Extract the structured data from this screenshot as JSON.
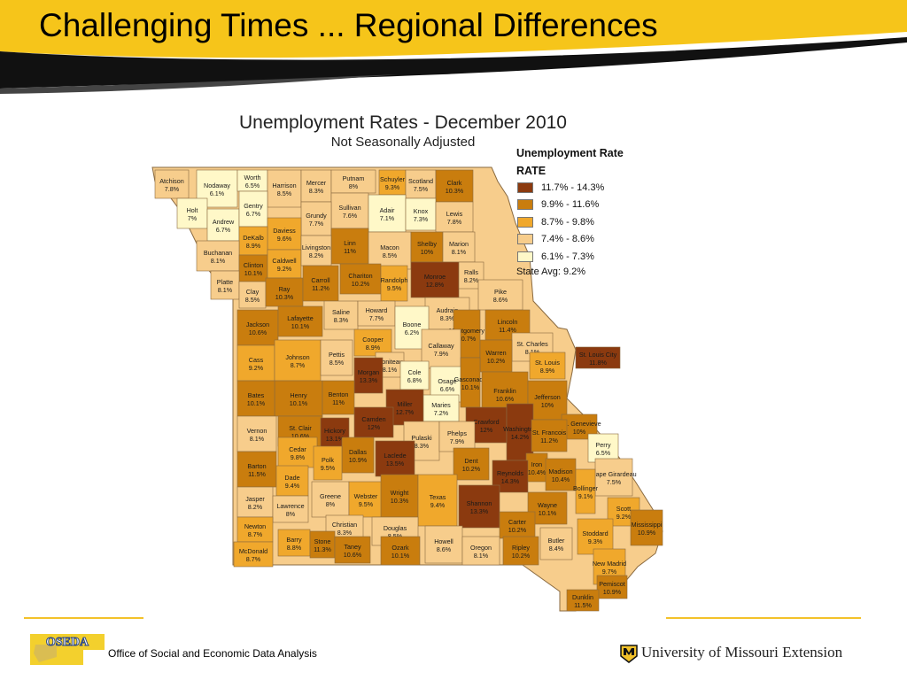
{
  "slide": {
    "title": "Challenging Times ... Regional Differences"
  },
  "map": {
    "title": "Unemployment Rates - December 2010",
    "subtitle": "Not Seasonally Adjusted"
  },
  "legend": {
    "title": "Unemployment Rate",
    "subtitle": "RATE",
    "classes": [
      {
        "label": "11.7% - 14.3%",
        "color": "#8b3a0f"
      },
      {
        "label": "9.9% - 11.6%",
        "color": "#c97d0e"
      },
      {
        "label": "8.7% - 9.8%",
        "color": "#f0a82c"
      },
      {
        "label": "7.4% - 8.6%",
        "color": "#f7cd8c"
      },
      {
        "label": "6.1% - 7.3%",
        "color": "#fff8c8"
      }
    ],
    "state_avg": "State Avg: 9.2%"
  },
  "counties": [
    {
      "name": "Atchison",
      "rate": "7.8%"
    },
    {
      "name": "Nodaway",
      "rate": "6.1%"
    },
    {
      "name": "Worth",
      "rate": "6.5%"
    },
    {
      "name": "Harrison",
      "rate": "8.5%"
    },
    {
      "name": "Mercer",
      "rate": "8.3%"
    },
    {
      "name": "Putnam",
      "rate": "8%"
    },
    {
      "name": "Schuyler",
      "rate": "9.3%"
    },
    {
      "name": "Scotland",
      "rate": "7.5%"
    },
    {
      "name": "Clark",
      "rate": "10.3%"
    },
    {
      "name": "Holt",
      "rate": "7%"
    },
    {
      "name": "Andrew",
      "rate": "6.7%"
    },
    {
      "name": "Gentry",
      "rate": "6.7%"
    },
    {
      "name": "Sullivan",
      "rate": "7.6%"
    },
    {
      "name": "Adair",
      "rate": "7.1%"
    },
    {
      "name": "Knox",
      "rate": "7.3%"
    },
    {
      "name": "Lewis",
      "rate": "7.8%"
    },
    {
      "name": "Grundy",
      "rate": "7.7%"
    },
    {
      "name": "Daviess",
      "rate": "9.6%"
    },
    {
      "name": "DeKalb",
      "rate": "8.9%"
    },
    {
      "name": "Linn",
      "rate": "11%"
    },
    {
      "name": "Macon",
      "rate": "8.5%"
    },
    {
      "name": "Shelby",
      "rate": "10%"
    },
    {
      "name": "Marion",
      "rate": "8.1%"
    },
    {
      "name": "Buchanan",
      "rate": "8.1%"
    },
    {
      "name": "Clinton",
      "rate": "10.1%"
    },
    {
      "name": "Caldwell",
      "rate": "9.2%"
    },
    {
      "name": "Livingston",
      "rate": "8.2%"
    },
    {
      "name": "Chariton",
      "rate": "10.2%"
    },
    {
      "name": "Randolph",
      "rate": "9.5%"
    },
    {
      "name": "Monroe",
      "rate": "12.8%"
    },
    {
      "name": "Ralls",
      "rate": "8.2%"
    },
    {
      "name": "Platte",
      "rate": "8.1%"
    },
    {
      "name": "Clay",
      "rate": "8.5%"
    },
    {
      "name": "Ray",
      "rate": "10.3%"
    },
    {
      "name": "Carroll",
      "rate": "11.2%"
    },
    {
      "name": "Pike",
      "rate": "8.6%"
    },
    {
      "name": "Saline",
      "rate": "8.3%"
    },
    {
      "name": "Howard",
      "rate": "7.7%"
    },
    {
      "name": "Audrain",
      "rate": "8.3%"
    },
    {
      "name": "Jackson",
      "rate": "10.6%"
    },
    {
      "name": "Lafayette",
      "rate": "10.1%"
    },
    {
      "name": "Boone",
      "rate": "6.2%"
    },
    {
      "name": "Lincoln",
      "rate": "11.4%"
    },
    {
      "name": "Montgomery",
      "rate": "10.7%"
    },
    {
      "name": "Callaway",
      "rate": "7.9%"
    },
    {
      "name": "Cooper",
      "rate": "8.9%"
    },
    {
      "name": "St. Charles",
      "rate": "8.1%"
    },
    {
      "name": "Warren",
      "rate": "10.2%"
    },
    {
      "name": "Cass",
      "rate": "9.2%"
    },
    {
      "name": "Johnson",
      "rate": "8.7%"
    },
    {
      "name": "Pettis",
      "rate": "8.5%"
    },
    {
      "name": "St. Louis City",
      "rate": "11.8%"
    },
    {
      "name": "St. Louis",
      "rate": "8.9%"
    },
    {
      "name": "Moniteau",
      "rate": "8.1%"
    },
    {
      "name": "Cole",
      "rate": "6.8%"
    },
    {
      "name": "Morgan",
      "rate": "13.3%"
    },
    {
      "name": "Osage",
      "rate": "6.6%"
    },
    {
      "name": "Gasconade",
      "rate": "10.1%"
    },
    {
      "name": "Franklin",
      "rate": "10.6%"
    },
    {
      "name": "Henry",
      "rate": "10.1%"
    },
    {
      "name": "Bates",
      "rate": "10.1%"
    },
    {
      "name": "Benton",
      "rate": "11%"
    },
    {
      "name": "Miller",
      "rate": "12.7%"
    },
    {
      "name": "Maries",
      "rate": "7.2%"
    },
    {
      "name": "Jefferson",
      "rate": "10%"
    },
    {
      "name": "St. Clair",
      "rate": "10.6%"
    },
    {
      "name": "Camden",
      "rate": "12%"
    },
    {
      "name": "Crawford",
      "rate": "12%"
    },
    {
      "name": "Washington",
      "rate": "14.2%"
    },
    {
      "name": "Ste. Genevieve",
      "rate": "10%"
    },
    {
      "name": "Vernon",
      "rate": "8.1%"
    },
    {
      "name": "Hickory",
      "rate": "13.1%"
    },
    {
      "name": "Pulaski",
      "rate": "8.3%"
    },
    {
      "name": "Phelps",
      "rate": "7.9%"
    },
    {
      "name": "St. Francois",
      "rate": "11.2%"
    },
    {
      "name": "Perry",
      "rate": "6.5%"
    },
    {
      "name": "Cedar",
      "rate": "9.8%"
    },
    {
      "name": "Dallas",
      "rate": "10.9%"
    },
    {
      "name": "Polk",
      "rate": "9.5%"
    },
    {
      "name": "Laclede",
      "rate": "13.5%"
    },
    {
      "name": "Dent",
      "rate": "10.2%"
    },
    {
      "name": "Iron",
      "rate": "10.4%"
    },
    {
      "name": "Madison",
      "rate": "10.4%"
    },
    {
      "name": "Barton",
      "rate": "11.5%"
    },
    {
      "name": "Dade",
      "rate": "9.4%"
    },
    {
      "name": "Reynolds",
      "rate": "14.3%"
    },
    {
      "name": "Cape Girardeau",
      "rate": "7.5%"
    },
    {
      "name": "Bollinger",
      "rate": "9.1%"
    },
    {
      "name": "Jasper",
      "rate": "8.2%"
    },
    {
      "name": "Lawrence",
      "rate": "8%"
    },
    {
      "name": "Greene",
      "rate": "8%"
    },
    {
      "name": "Webster",
      "rate": "9.5%"
    },
    {
      "name": "Wright",
      "rate": "10.3%"
    },
    {
      "name": "Texas",
      "rate": "9.4%"
    },
    {
      "name": "Shannon",
      "rate": "13.3%"
    },
    {
      "name": "Wayne",
      "rate": "10.1%"
    },
    {
      "name": "Scott",
      "rate": "9.2%"
    },
    {
      "name": "Christian",
      "rate": "8.3%"
    },
    {
      "name": "Carter",
      "rate": "10.2%"
    },
    {
      "name": "Mississippi",
      "rate": "10.9%"
    },
    {
      "name": "Newton",
      "rate": "8.7%"
    },
    {
      "name": "Douglas",
      "rate": "8.5%"
    },
    {
      "name": "Stoddard",
      "rate": "9.3%"
    },
    {
      "name": "Barry",
      "rate": "8.8%"
    },
    {
      "name": "Stone",
      "rate": "11.3%"
    },
    {
      "name": "Taney",
      "rate": "10.6%"
    },
    {
      "name": "Ozark",
      "rate": "10.1%"
    },
    {
      "name": "Howell",
      "rate": "8.6%"
    },
    {
      "name": "Oregon",
      "rate": "8.1%"
    },
    {
      "name": "Ripley",
      "rate": "10.2%"
    },
    {
      "name": "Butler",
      "rate": "8.4%"
    },
    {
      "name": "McDonald",
      "rate": "8.7%"
    },
    {
      "name": "New Madrid",
      "rate": "9.7%"
    },
    {
      "name": "Pemiscot",
      "rate": "10.9%"
    },
    {
      "name": "Dunklin",
      "rate": "11.5%"
    }
  ],
  "footer": {
    "oseda_logo_text": "OSEDA",
    "oseda_name": "Office of Social and Economic Data Analysis",
    "university": "University of Missouri Extension"
  }
}
